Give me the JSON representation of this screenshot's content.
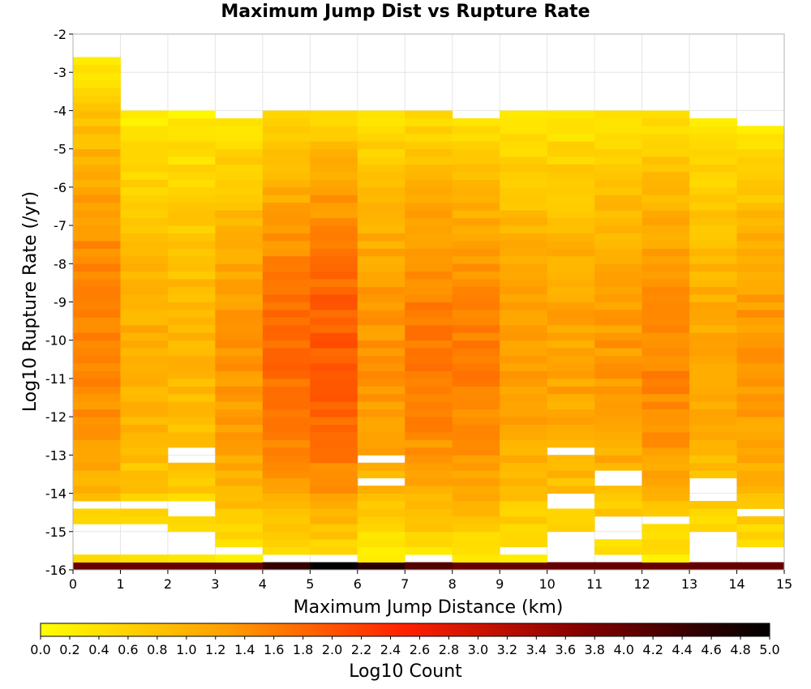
{
  "chart_data": {
    "type": "heatmap",
    "title": "Maximum Jump Dist vs Rupture Rate",
    "xlabel": "Maximum Jump Distance (km)",
    "ylabel": "Log10 Rupture Rate (/yr)",
    "xlim": [
      0,
      15
    ],
    "ylim": [
      -16,
      -2
    ],
    "x_ticks": [
      "0",
      "1",
      "2",
      "3",
      "4",
      "5",
      "6",
      "7",
      "8",
      "9",
      "10",
      "11",
      "12",
      "13",
      "14",
      "15"
    ],
    "y_ticks": [
      "-2",
      "-3",
      "-4",
      "-5",
      "-6",
      "-7",
      "-8",
      "-9",
      "-10",
      "-11",
      "-12",
      "-13",
      "-14",
      "-15",
      "-16"
    ],
    "x_bin_width": 1,
    "y_bin_height": 0.2,
    "colorbar": {
      "label": "Log10 Count",
      "range": [
        0,
        5
      ],
      "ticks": [
        "0.0",
        "0.2",
        "0.4",
        "0.6",
        "0.8",
        "1.0",
        "1.2",
        "1.4",
        "1.6",
        "1.8",
        "2.0",
        "2.2",
        "2.4",
        "2.6",
        "2.8",
        "3.0",
        "3.2",
        "3.4",
        "3.6",
        "3.8",
        "4.0",
        "4.2",
        "4.4",
        "4.6",
        "4.8",
        "5.0"
      ],
      "colors": [
        "#ffff00",
        "#ffa000",
        "#ff2000",
        "#800000",
        "#000000"
      ]
    },
    "columns": [
      {
        "x": 0,
        "ymax": -2.7,
        "ymin": -16.0,
        "peak": 1.55,
        "gaps": [
          [
            -14.4,
            -14.2
          ],
          [
            -15.6,
            -14.8
          ]
        ],
        "bottom_row": 4.0
      },
      {
        "x": 1,
        "ymax": -3.9,
        "ymin": -16.0,
        "peak": 1.05,
        "gaps": [
          [
            -14.4,
            -14.2
          ],
          [
            -15.6,
            -14.8
          ]
        ],
        "bottom_row": 4.0
      },
      {
        "x": 2,
        "ymax": -3.9,
        "ymin": -16.0,
        "peak": 0.95,
        "gaps": [
          [
            -13.3,
            -12.8
          ],
          [
            -14.6,
            -14.2
          ],
          [
            -15.6,
            -15.0
          ]
        ],
        "bottom_row": 4.0
      },
      {
        "x": 3,
        "ymax": -4.2,
        "ymin": -16.0,
        "peak": 1.35,
        "gaps": [
          [
            -15.6,
            -15.4
          ]
        ],
        "bottom_row": 4.0
      },
      {
        "x": 4,
        "ymax": -3.9,
        "ymin": -16.0,
        "peak": 1.75,
        "gaps": [
          [
            -15.9,
            -15.6
          ]
        ],
        "bottom_row": 4.5
      },
      {
        "x": 5,
        "ymax": -3.9,
        "ymin": -16.0,
        "peak": 1.95,
        "gaps": [
          [
            -15.9,
            -15.6
          ]
        ],
        "bottom_row": 5.0
      },
      {
        "x": 6,
        "ymax": -3.9,
        "ymin": -16.0,
        "peak": 1.35,
        "gaps": [
          [
            -13.2,
            -12.9
          ],
          [
            -13.9,
            -13.6
          ]
        ],
        "bottom_row": 4.6
      },
      {
        "x": 7,
        "ymax": -3.9,
        "ymin": -16.0,
        "peak": 1.6,
        "gaps": [
          [
            -15.9,
            -15.6
          ]
        ],
        "bottom_row": 4.2
      },
      {
        "x": 8,
        "ymax": -4.2,
        "ymin": -16.0,
        "peak": 1.55,
        "gaps": [],
        "bottom_row": 4.0
      },
      {
        "x": 9,
        "ymax": -3.9,
        "ymin": -16.0,
        "peak": 1.25,
        "gaps": [
          [
            -15.6,
            -15.4
          ]
        ],
        "bottom_row": 4.0
      },
      {
        "x": 10,
        "ymax": -3.9,
        "ymin": -16.0,
        "peak": 1.2,
        "gaps": [
          [
            -13.0,
            -12.8
          ],
          [
            -14.4,
            -14.0
          ],
          [
            -15.9,
            -14.9
          ]
        ],
        "bottom_row": 4.0
      },
      {
        "x": 11,
        "ymax": -3.9,
        "ymin": -16.0,
        "peak": 1.3,
        "gaps": [
          [
            -13.9,
            -13.4
          ],
          [
            -15.2,
            -14.6
          ],
          [
            -15.9,
            -15.6
          ]
        ],
        "bottom_row": 4.0
      },
      {
        "x": 12,
        "ymax": -3.9,
        "ymin": -16.0,
        "peak": 1.5,
        "gaps": [
          [
            -14.8,
            -14.6
          ]
        ],
        "bottom_row": 4.0
      },
      {
        "x": 13,
        "ymax": -4.2,
        "ymin": -16.0,
        "peak": 1.1,
        "gaps": [
          [
            -14.2,
            -13.6
          ],
          [
            -15.9,
            -15.0
          ]
        ],
        "bottom_row": 4.0
      },
      {
        "x": 14,
        "ymax": -4.4,
        "ymin": -16.0,
        "peak": 1.35,
        "gaps": [
          [
            -14.6,
            -14.4
          ],
          [
            -15.9,
            -15.4
          ]
        ],
        "bottom_row": 4.0
      }
    ]
  }
}
